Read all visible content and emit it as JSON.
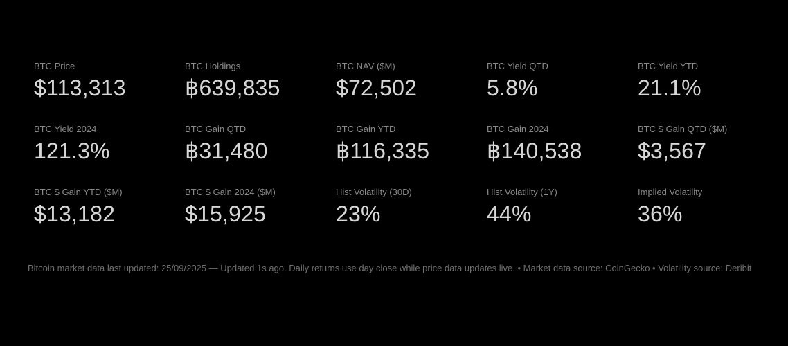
{
  "metrics": [
    {
      "label": "BTC Price",
      "value": "$113,313"
    },
    {
      "label": "BTC Holdings",
      "value": "฿639,835"
    },
    {
      "label": "BTC NAV ($M)",
      "value": "$72,502"
    },
    {
      "label": "BTC Yield QTD",
      "value": "5.8%"
    },
    {
      "label": "BTC Yield YTD",
      "value": "21.1%"
    },
    {
      "label": "BTC Yield 2024",
      "value": "121.3%"
    },
    {
      "label": "BTC Gain QTD",
      "value": "฿31,480"
    },
    {
      "label": "BTC Gain YTD",
      "value": "฿116,335"
    },
    {
      "label": "BTC Gain 2024",
      "value": "฿140,538"
    },
    {
      "label": "BTC $ Gain QTD ($M)",
      "value": "$3,567"
    },
    {
      "label": "BTC $ Gain YTD ($M)",
      "value": "$13,182"
    },
    {
      "label": "BTC $ Gain 2024 ($M)",
      "value": "$15,925"
    },
    {
      "label": "Hist Volatility (30D)",
      "value": "23%"
    },
    {
      "label": "Hist Volatility (1Y)",
      "value": "44%"
    },
    {
      "label": "Implied Volatility",
      "value": "36%"
    }
  ],
  "footer": {
    "text": "Bitcoin market data last updated: 25/09/2025 — Updated 1s ago. Daily returns use day close while price data updates live. • Market data source: CoinGecko • Volatility source: Deribit"
  },
  "colors": {
    "background": "#000000",
    "label": "#8a8a8a",
    "value": "#d6d6d6",
    "footer": "#6f6f6f"
  }
}
